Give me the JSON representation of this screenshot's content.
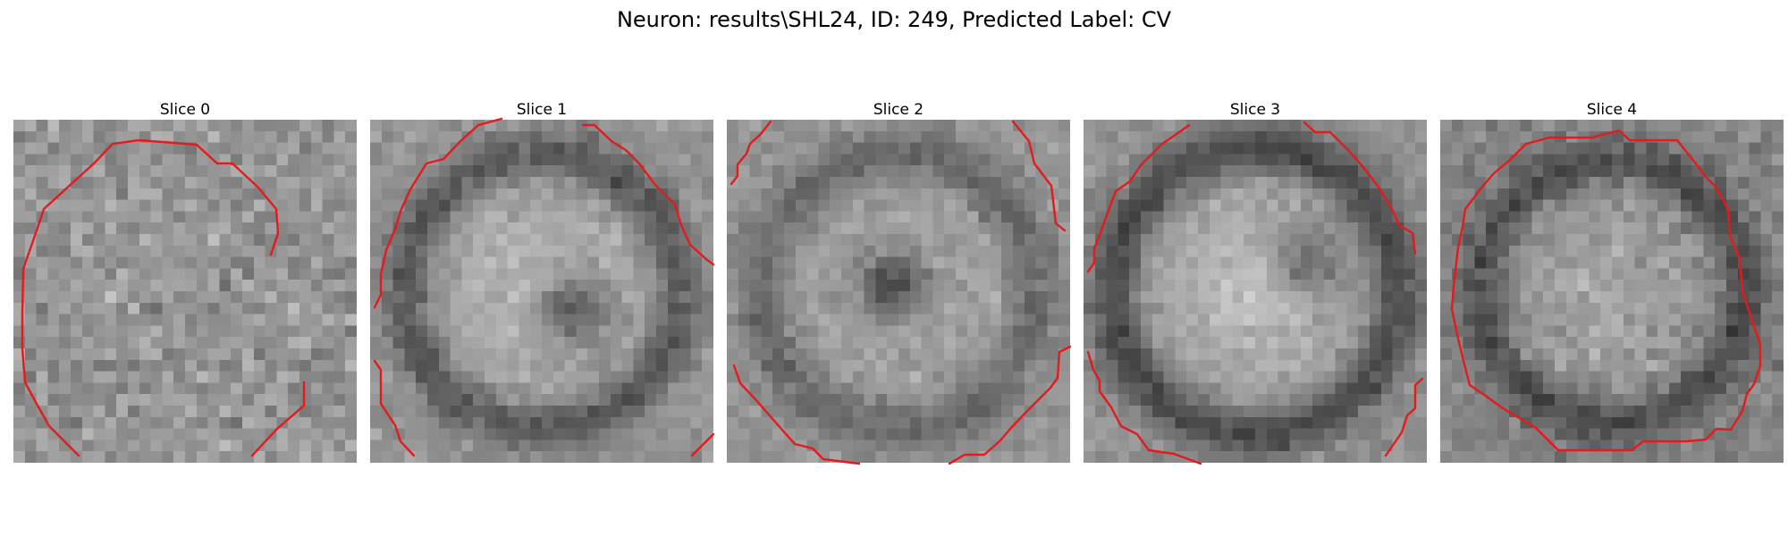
{
  "figure": {
    "title": "Neuron: results\\SHL24, ID: 249, Predicted Label: CV",
    "contour_color": "#e41a1c",
    "slices": [
      {
        "label": "Slice 0"
      },
      {
        "label": "Slice 1"
      },
      {
        "label": "Slice 2"
      },
      {
        "label": "Slice 3"
      },
      {
        "label": "Slice 4"
      }
    ]
  }
}
